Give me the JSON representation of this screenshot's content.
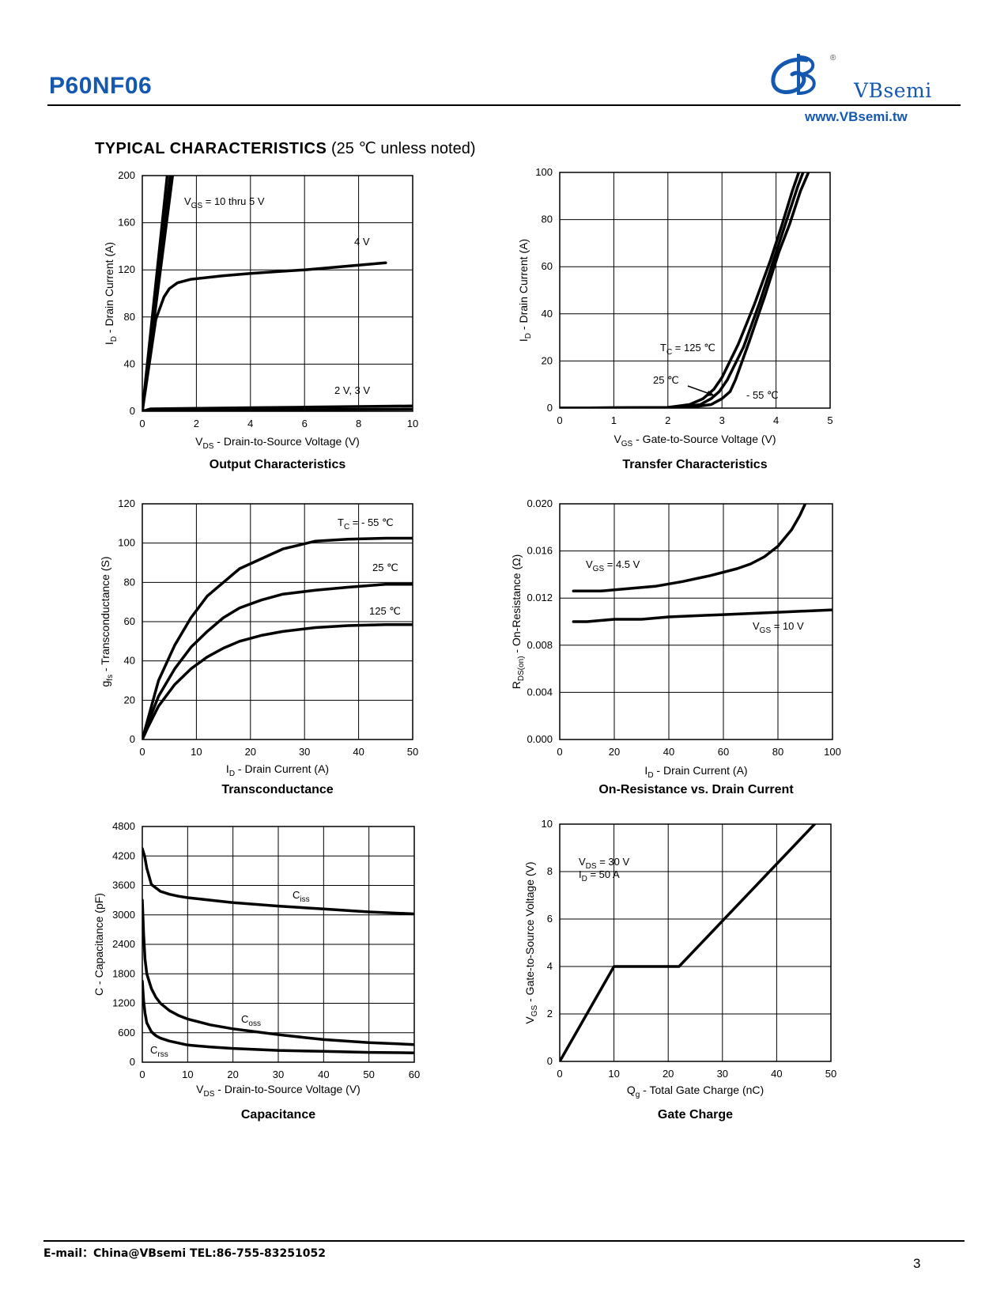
{
  "header": {
    "part_number": "P60NF06",
    "logo_text": "VBsemi",
    "logo_mark": "®",
    "website": "www.VBsemi.tw"
  },
  "section": {
    "title_bold": "TYPICAL CHARACTERISTICS",
    "title_rest": "(25 ℃ unless noted)"
  },
  "chart_data": [
    {
      "id": "output",
      "type": "line",
      "title": "Output Characteristics",
      "xlabel": "V<sub>DS</sub> - Drain-to-Source Voltage (V)",
      "ylabel": "I<sub>D</sub> - Drain Current (A)",
      "xlim": [
        0,
        10
      ],
      "ylim": [
        0,
        200
      ],
      "xticks": [
        0,
        2,
        4,
        6,
        8,
        10
      ],
      "yticks": [
        0,
        40,
        80,
        120,
        160,
        200
      ],
      "grid": true,
      "series": [
        {
          "name": "V<sub>GS</sub> = 10 thru 5 V",
          "x": [
            0,
            0.92
          ],
          "y": [
            0,
            200
          ]
        },
        {
          "name": "V<sub>GS</sub> = 10 thru 5 V",
          "x": [
            0,
            1.03
          ],
          "y": [
            0,
            200
          ]
        },
        {
          "name": "V<sub>GS</sub> = 10 thru 5 V",
          "x": [
            0,
            1.12
          ],
          "y": [
            0,
            200
          ]
        },
        {
          "name": "4 V",
          "x": [
            0,
            0.5,
            0.8,
            1.0,
            1.3,
            1.8,
            3,
            4,
            5,
            6,
            7,
            8,
            9
          ],
          "y": [
            0,
            78,
            97,
            104,
            109,
            112,
            115,
            117,
            118.5,
            120,
            122,
            124,
            126
          ]
        },
        {
          "name": "2 V, 3 V",
          "x": [
            0,
            0.3,
            2,
            4,
            6,
            8,
            10
          ],
          "y": [
            0,
            2,
            2.5,
            3,
            3.5,
            4,
            4.5
          ]
        },
        {
          "name": "2 V, 3 V",
          "x": [
            0,
            0.3,
            2,
            4,
            6,
            8,
            10
          ],
          "y": [
            0,
            0.8,
            1,
            1.2,
            1.4,
            1.6,
            1.8
          ]
        }
      ],
      "annotations": [
        "V<sub>GS</sub> = 10 thru 5 V",
        "4 V",
        "2 V, 3 V"
      ]
    },
    {
      "id": "transfer",
      "type": "line",
      "title": "Transfer Characteristics",
      "xlabel": "V<sub>GS</sub> - Gate-to-Source Voltage (V)",
      "ylabel": "I<sub>D</sub> - Drain Current (A)",
      "xlim": [
        0,
        5
      ],
      "ylim": [
        0,
        100
      ],
      "xticks": [
        0,
        1,
        2,
        3,
        4,
        5
      ],
      "yticks": [
        0,
        20,
        40,
        60,
        80,
        100
      ],
      "grid": true,
      "series": [
        {
          "name": "T<sub>C</sub> = 125 ℃",
          "x": [
            0,
            2.0,
            2.4,
            2.65,
            2.85,
            3.0,
            3.3,
            3.6,
            3.9,
            4.1,
            4.3,
            4.42
          ],
          "y": [
            0,
            0.3,
            1.5,
            4,
            8,
            13,
            27,
            44,
            63,
            77,
            92,
            100
          ]
        },
        {
          "name": "25 ℃",
          "x": [
            0,
            2.2,
            2.6,
            2.8,
            2.95,
            3.1,
            3.4,
            3.7,
            4.0,
            4.2,
            4.4,
            4.5
          ],
          "y": [
            0,
            0.3,
            1.5,
            4,
            7,
            12,
            26,
            45,
            66,
            80,
            94,
            100
          ]
        },
        {
          "name": "- 55 ℃",
          "x": [
            0,
            2.4,
            2.8,
            3.0,
            3.15,
            3.25,
            3.5,
            3.8,
            4.05,
            4.25,
            4.45,
            4.6
          ],
          "y": [
            0,
            0.3,
            1.5,
            4,
            7,
            12,
            28,
            48,
            66,
            78,
            92,
            100
          ]
        }
      ],
      "annotations": [
        "T<sub>C</sub> = 125 ℃",
        "25 ℃",
        "- 55 ℃"
      ]
    },
    {
      "id": "transconductance",
      "type": "line",
      "title": "Transconductance",
      "xlabel": "I<sub>D</sub> - Drain Current (A)",
      "ylabel": "g<sub>fs</sub> - Transconductance (S)",
      "xlim": [
        0,
        50
      ],
      "ylim": [
        0,
        120
      ],
      "xticks": [
        0,
        10,
        20,
        30,
        40,
        50
      ],
      "yticks": [
        0,
        20,
        40,
        60,
        80,
        100,
        120
      ],
      "grid": true,
      "series": [
        {
          "name": "T<sub>C</sub> = - 55 ℃",
          "x": [
            0,
            1,
            3,
            6,
            9,
            12,
            15,
            18,
            22,
            26,
            32,
            38,
            45,
            50
          ],
          "y": [
            0,
            10,
            30,
            48,
            62,
            73,
            80,
            87,
            92,
            97,
            101,
            102,
            102.5,
            102.5
          ]
        },
        {
          "name": "25 ℃",
          "x": [
            0,
            1,
            3,
            6,
            9,
            12,
            15,
            18,
            22,
            26,
            32,
            38,
            45,
            50
          ],
          "y": [
            0,
            8,
            22,
            36,
            47,
            55,
            62,
            67,
            71,
            74,
            76,
            77.5,
            79,
            79
          ]
        },
        {
          "name": "125 ℃",
          "x": [
            0,
            1,
            3,
            6,
            9,
            12,
            15,
            18,
            22,
            26,
            32,
            38,
            45,
            50
          ],
          "y": [
            0,
            6,
            17,
            28,
            36,
            42,
            46.5,
            50,
            53,
            55,
            57,
            58,
            58.5,
            58.5
          ]
        }
      ],
      "annotations": [
        "T<sub>C</sub> = - 55 ℃",
        "25 ℃",
        "125 ℃"
      ]
    },
    {
      "id": "onres",
      "type": "line",
      "title": "On-Resistance vs. Drain Current",
      "xlabel": "I<sub>D</sub> - Drain Current (A)",
      "ylabel": "R<sub>DS(on)</sub> - On-Resistance (Ω)",
      "xlim": [
        0,
        100
      ],
      "ylim": [
        0,
        0.02
      ],
      "xticks": [
        0,
        20,
        40,
        60,
        80,
        100
      ],
      "yticks": [
        "0.000",
        "0.004",
        "0.008",
        "0.012",
        "0.016",
        "0.020"
      ],
      "grid": true,
      "series": [
        {
          "name": "V<sub>GS</sub> = 4.5 V",
          "x": [
            5,
            15,
            25,
            35,
            45,
            55,
            65,
            70,
            75,
            80,
            85,
            88,
            90
          ],
          "y": [
            0.0126,
            0.0126,
            0.0128,
            0.013,
            0.0134,
            0.0139,
            0.0145,
            0.0149,
            0.0155,
            0.0164,
            0.0178,
            0.019,
            0.02
          ]
        },
        {
          "name": "V<sub>GS</sub> = 10 V",
          "x": [
            5,
            10,
            15,
            20,
            30,
            35,
            40,
            50,
            60,
            70,
            80,
            90,
            100
          ],
          "y": [
            0.01,
            0.01,
            0.0101,
            0.0102,
            0.0102,
            0.0103,
            0.0104,
            0.0105,
            0.0106,
            0.0107,
            0.0108,
            0.0109,
            0.011
          ]
        }
      ],
      "annotations": [
        "V<sub>GS</sub> = 4.5 V",
        "V<sub>GS</sub> = 10 V"
      ]
    },
    {
      "id": "capacitance",
      "type": "line",
      "title": "Capacitance",
      "xlabel": "V<sub>DS</sub> - Drain-to-Source Voltage (V)",
      "ylabel": "C - Capacitance (pF)",
      "xlim": [
        0,
        60
      ],
      "ylim": [
        0,
        4800
      ],
      "xticks": [
        0,
        10,
        20,
        30,
        40,
        50,
        60
      ],
      "yticks": [
        0,
        600,
        1200,
        1800,
        2400,
        3000,
        3600,
        4200,
        4800
      ],
      "grid": true,
      "series": [
        {
          "name": "C<sub>iss</sub>",
          "x": [
            0,
            0.5,
            1,
            2,
            4,
            6,
            8,
            10,
            15,
            20,
            30,
            40,
            50,
            60
          ],
          "y": [
            4350,
            4200,
            3950,
            3620,
            3480,
            3420,
            3380,
            3350,
            3300,
            3250,
            3180,
            3120,
            3060,
            3020
          ]
        },
        {
          "name": "C<sub>oss</sub>",
          "x": [
            0,
            0.3,
            0.6,
            1,
            2,
            3,
            4,
            6,
            8,
            10,
            15,
            20,
            25,
            30,
            40,
            50,
            60
          ],
          "y": [
            3300,
            2600,
            2100,
            1800,
            1500,
            1320,
            1200,
            1050,
            950,
            880,
            760,
            680,
            620,
            560,
            460,
            400,
            360
          ]
        },
        {
          "name": "C<sub>rss</sub>",
          "x": [
            0,
            0.3,
            0.6,
            1,
            2,
            3,
            4,
            6,
            8,
            10,
            15,
            20,
            30,
            40,
            50,
            60
          ],
          "y": [
            1650,
            1250,
            1000,
            800,
            620,
            540,
            490,
            430,
            390,
            350,
            310,
            280,
            240,
            220,
            200,
            190
          ]
        }
      ],
      "annotations": [
        "C<sub>iss</sub>",
        "C<sub>oss</sub>",
        "C<sub>rss</sub>"
      ]
    },
    {
      "id": "gatecharge",
      "type": "line",
      "title": "Gate Charge",
      "xlabel": "Q<sub>g</sub> - Total Gate Charge (nC)",
      "ylabel": "V<sub>GS</sub> - Gate-to-Source Voltage (V)",
      "xlim": [
        0,
        50
      ],
      "ylim": [
        0,
        10
      ],
      "xticks": [
        0,
        10,
        20,
        30,
        40,
        50
      ],
      "yticks": [
        0,
        2,
        4,
        6,
        8,
        10
      ],
      "grid": true,
      "series": [
        {
          "x": [
            0,
            10,
            22,
            47
          ],
          "y": [
            0,
            4,
            4,
            10
          ]
        }
      ],
      "annotations": [
        "V<sub>DS</sub> = 30 V",
        "I<sub>D</sub> = 50 A"
      ]
    }
  ],
  "footer": {
    "contact": "E-mail：China@VBsemi    TEL:86-755-83251052",
    "page_number": "3"
  }
}
